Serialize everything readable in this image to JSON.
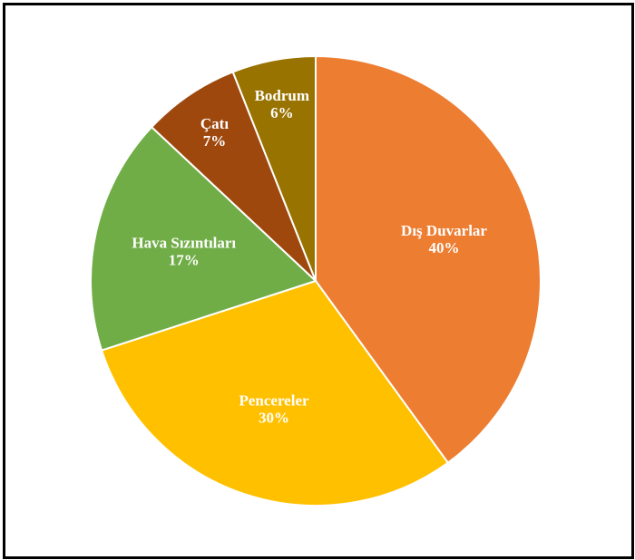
{
  "chart_data": {
    "type": "pie",
    "title": "",
    "legend": "none",
    "slices": [
      {
        "name": "Dış Duvarlar",
        "value": 40,
        "label": "40%",
        "color": "#ED7D31"
      },
      {
        "name": "Pencereler",
        "value": 30,
        "label": "30%",
        "color": "#FFC000"
      },
      {
        "name": "Hava Sızıntıları",
        "value": 17,
        "label": "17%",
        "color": "#70AD47"
      },
      {
        "name": "Çatı",
        "value": 7,
        "label": "7%",
        "color": "#9E480E"
      },
      {
        "name": "Bodrum",
        "value": 6,
        "label": "6%",
        "color": "#997300"
      }
    ]
  }
}
